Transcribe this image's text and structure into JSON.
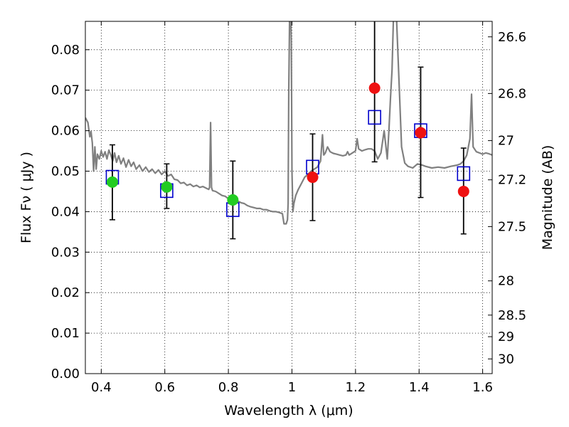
{
  "chart_data": {
    "type": "scatter",
    "xlabel": "Wavelength  λ (μm)",
    "ylabel": "Flux  Fν  ( μJy )",
    "ylabel_right": "Magnitude (AB)",
    "xlim": [
      0.35,
      1.63
    ],
    "ylim": [
      0.0,
      0.087
    ],
    "grid": true,
    "x_ticks": [
      0.4,
      0.6,
      0.8,
      1.0,
      1.2,
      1.4,
      1.6
    ],
    "x_tick_labels": [
      "0.4",
      "0.6",
      "0.8",
      "1",
      "1.2",
      "1.4",
      "1.6"
    ],
    "y_ticks": [
      0.0,
      0.01,
      0.02,
      0.03,
      0.04,
      0.05,
      0.06,
      0.07,
      0.08
    ],
    "y_tick_labels": [
      "0.00",
      "0.01",
      "0.02",
      "0.03",
      "0.04",
      "0.05",
      "0.06",
      "0.07",
      "0.08"
    ],
    "mag_ticks": [
      26.6,
      26.8,
      27,
      27.2,
      27.5,
      28,
      28.5,
      29,
      30
    ],
    "mag_tick_labels": [
      "26.6",
      "26.8",
      "27",
      "27.2",
      "27.5",
      "28",
      "28.5",
      "29",
      "30"
    ],
    "colors": {
      "model": "#808080",
      "observed_green": "#22cc22",
      "observed_red": "#ee1111",
      "model_box": "#0000cc",
      "errorbar": "#000000"
    },
    "model_boxes": [
      {
        "x": 0.435,
        "y": 0.0485
      },
      {
        "x": 0.606,
        "y": 0.0452
      },
      {
        "x": 0.814,
        "y": 0.0405
      },
      {
        "x": 1.065,
        "y": 0.051
      },
      {
        "x": 1.26,
        "y": 0.0633
      },
      {
        "x": 1.405,
        "y": 0.06
      },
      {
        "x": 1.54,
        "y": 0.0494
      }
    ],
    "observed": [
      {
        "x": 0.435,
        "y": 0.0473,
        "yerr_low": 0.038,
        "yerr_high": 0.0565,
        "color": "green"
      },
      {
        "x": 0.606,
        "y": 0.0461,
        "yerr_low": 0.0408,
        "yerr_high": 0.0518,
        "color": "green"
      },
      {
        "x": 0.814,
        "y": 0.0429,
        "yerr_low": 0.0333,
        "yerr_high": 0.0525,
        "color": "green"
      },
      {
        "x": 1.065,
        "y": 0.0485,
        "yerr_low": 0.0378,
        "yerr_high": 0.0592,
        "color": "red"
      },
      {
        "x": 1.26,
        "y": 0.0705,
        "yerr_low": 0.0523,
        "yerr_high": 0.088,
        "color": "red"
      },
      {
        "x": 1.405,
        "y": 0.0595,
        "yerr_low": 0.0435,
        "yerr_high": 0.0757,
        "color": "red"
      },
      {
        "x": 1.54,
        "y": 0.045,
        "yerr_low": 0.0345,
        "yerr_high": 0.0557,
        "color": "red"
      }
    ],
    "model_spectrum": [
      [
        0.35,
        0.0632
      ],
      [
        0.358,
        0.062
      ],
      [
        0.364,
        0.0585
      ],
      [
        0.368,
        0.0598
      ],
      [
        0.372,
        0.057
      ],
      [
        0.376,
        0.05
      ],
      [
        0.38,
        0.056
      ],
      [
        0.384,
        0.0505
      ],
      [
        0.388,
        0.0542
      ],
      [
        0.394,
        0.053
      ],
      [
        0.4,
        0.055
      ],
      [
        0.406,
        0.0535
      ],
      [
        0.412,
        0.0548
      ],
      [
        0.418,
        0.053
      ],
      [
        0.424,
        0.0552
      ],
      [
        0.43,
        0.054
      ],
      [
        0.436,
        0.0525
      ],
      [
        0.442,
        0.0545
      ],
      [
        0.448,
        0.0522
      ],
      [
        0.455,
        0.0538
      ],
      [
        0.462,
        0.0518
      ],
      [
        0.47,
        0.0532
      ],
      [
        0.478,
        0.051
      ],
      [
        0.486,
        0.0528
      ],
      [
        0.494,
        0.0512
      ],
      [
        0.502,
        0.0522
      ],
      [
        0.51,
        0.0505
      ],
      [
        0.52,
        0.0515
      ],
      [
        0.53,
        0.05
      ],
      [
        0.54,
        0.051
      ],
      [
        0.55,
        0.0498
      ],
      [
        0.56,
        0.0505
      ],
      [
        0.57,
        0.0495
      ],
      [
        0.58,
        0.0503
      ],
      [
        0.59,
        0.0492
      ],
      [
        0.6,
        0.05
      ],
      [
        0.61,
        0.0488
      ],
      [
        0.62,
        0.0492
      ],
      [
        0.63,
        0.048
      ],
      [
        0.64,
        0.0478
      ],
      [
        0.65,
        0.047
      ],
      [
        0.66,
        0.0472
      ],
      [
        0.67,
        0.0465
      ],
      [
        0.68,
        0.0468
      ],
      [
        0.69,
        0.0462
      ],
      [
        0.7,
        0.0465
      ],
      [
        0.71,
        0.046
      ],
      [
        0.72,
        0.0462
      ],
      [
        0.73,
        0.0458
      ],
      [
        0.738,
        0.0455
      ],
      [
        0.741,
        0.046
      ],
      [
        0.744,
        0.062
      ],
      [
        0.747,
        0.046
      ],
      [
        0.75,
        0.0452
      ],
      [
        0.76,
        0.045
      ],
      [
        0.77,
        0.0445
      ],
      [
        0.78,
        0.044
      ],
      [
        0.79,
        0.0438
      ],
      [
        0.8,
        0.0432
      ],
      [
        0.81,
        0.043
      ],
      [
        0.82,
        0.0428
      ],
      [
        0.83,
        0.0426
      ],
      [
        0.84,
        0.0422
      ],
      [
        0.85,
        0.042
      ],
      [
        0.86,
        0.0415
      ],
      [
        0.87,
        0.0412
      ],
      [
        0.88,
        0.041
      ],
      [
        0.89,
        0.0408
      ],
      [
        0.9,
        0.0408
      ],
      [
        0.91,
        0.0405
      ],
      [
        0.92,
        0.0405
      ],
      [
        0.93,
        0.0402
      ],
      [
        0.94,
        0.04
      ],
      [
        0.95,
        0.04
      ],
      [
        0.96,
        0.0398
      ],
      [
        0.97,
        0.0395
      ],
      [
        0.975,
        0.037
      ],
      [
        0.982,
        0.037
      ],
      [
        0.986,
        0.038
      ],
      [
        0.988,
        0.042
      ],
      [
        0.99,
        0.07
      ],
      [
        0.993,
        0.09
      ],
      [
        0.996,
        0.09
      ],
      [
        0.998,
        0.082
      ],
      [
        1.0,
        0.05
      ],
      [
        1.003,
        0.04
      ],
      [
        1.006,
        0.042
      ],
      [
        1.012,
        0.044
      ],
      [
        1.02,
        0.0455
      ],
      [
        1.03,
        0.047
      ],
      [
        1.04,
        0.0485
      ],
      [
        1.05,
        0.0492
      ],
      [
        1.06,
        0.05
      ],
      [
        1.07,
        0.0505
      ],
      [
        1.08,
        0.051
      ],
      [
        1.09,
        0.0525
      ],
      [
        1.096,
        0.059
      ],
      [
        1.1,
        0.054
      ],
      [
        1.105,
        0.0545
      ],
      [
        1.112,
        0.056
      ],
      [
        1.12,
        0.0548
      ],
      [
        1.13,
        0.0544
      ],
      [
        1.14,
        0.0542
      ],
      [
        1.15,
        0.054
      ],
      [
        1.16,
        0.0538
      ],
      [
        1.17,
        0.054
      ],
      [
        1.175,
        0.0548
      ],
      [
        1.18,
        0.054
      ],
      [
        1.19,
        0.0545
      ],
      [
        1.2,
        0.055
      ],
      [
        1.205,
        0.058
      ],
      [
        1.21,
        0.0555
      ],
      [
        1.22,
        0.055
      ],
      [
        1.23,
        0.0553
      ],
      [
        1.24,
        0.0555
      ],
      [
        1.25,
        0.0555
      ],
      [
        1.26,
        0.055
      ],
      [
        1.27,
        0.053
      ],
      [
        1.28,
        0.0545
      ],
      [
        1.29,
        0.06
      ],
      [
        1.3,
        0.053
      ],
      [
        1.305,
        0.06
      ],
      [
        1.31,
        0.068
      ],
      [
        1.315,
        0.075
      ],
      [
        1.32,
        0.09
      ],
      [
        1.328,
        0.09
      ],
      [
        1.332,
        0.082
      ],
      [
        1.338,
        0.07
      ],
      [
        1.345,
        0.056
      ],
      [
        1.355,
        0.052
      ],
      [
        1.365,
        0.0512
      ],
      [
        1.38,
        0.0508
      ],
      [
        1.395,
        0.0518
      ],
      [
        1.41,
        0.0515
      ],
      [
        1.42,
        0.0512
      ],
      [
        1.44,
        0.0508
      ],
      [
        1.46,
        0.051
      ],
      [
        1.48,
        0.0508
      ],
      [
        1.5,
        0.0512
      ],
      [
        1.52,
        0.0515
      ],
      [
        1.53,
        0.0518
      ],
      [
        1.54,
        0.0525
      ],
      [
        1.55,
        0.054
      ],
      [
        1.56,
        0.058
      ],
      [
        1.565,
        0.069
      ],
      [
        1.57,
        0.056
      ],
      [
        1.58,
        0.0548
      ],
      [
        1.59,
        0.0545
      ],
      [
        1.6,
        0.0542
      ],
      [
        1.61,
        0.0545
      ],
      [
        1.62,
        0.0543
      ],
      [
        1.63,
        0.054
      ]
    ]
  }
}
